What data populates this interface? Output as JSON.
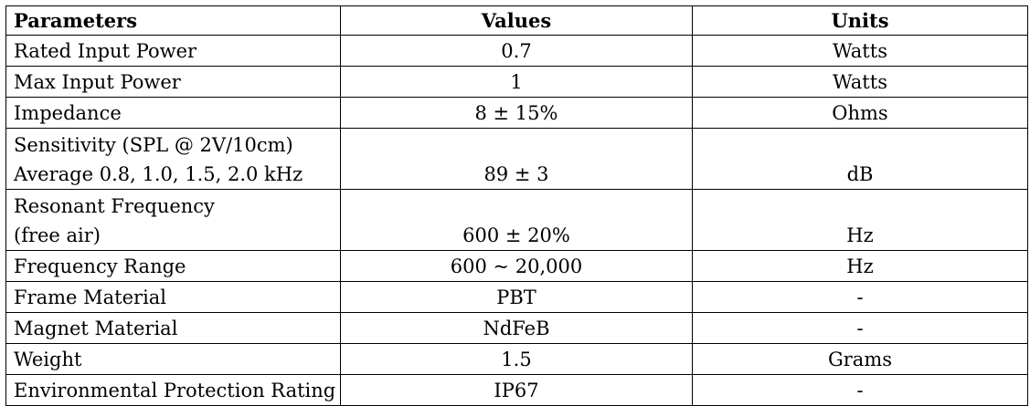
{
  "table": {
    "headers": [
      "Parameters",
      "Values",
      "Units"
    ],
    "rows": [
      {
        "parameter": [
          "Rated Input Power"
        ],
        "value": "0.7",
        "unit": "Watts"
      },
      {
        "parameter": [
          "Max Input Power"
        ],
        "value": "1",
        "unit": "Watts"
      },
      {
        "parameter": [
          "Impedance"
        ],
        "value": "8 ± 15%",
        "unit": "Ohms"
      },
      {
        "parameter": [
          "Sensitivity (SPL @ 2V/10cm)",
          "Average 0.8, 1.0, 1.5, 2.0 kHz"
        ],
        "value": "89 ± 3",
        "unit": "dB"
      },
      {
        "parameter": [
          "Resonant Frequency",
          "(free air)"
        ],
        "value": "600 ± 20%",
        "unit": "Hz"
      },
      {
        "parameter": [
          "Frequency Range"
        ],
        "value": "600 ~ 20,000",
        "unit": "Hz"
      },
      {
        "parameter": [
          "Frame Material"
        ],
        "value": "PBT",
        "unit": "-"
      },
      {
        "parameter": [
          "Magnet Material"
        ],
        "value": "NdFeB",
        "unit": "-"
      },
      {
        "parameter": [
          "Weight"
        ],
        "value": "1.5",
        "unit": "Grams"
      },
      {
        "parameter": [
          "Environmental Protection Rating"
        ],
        "value": "IP67",
        "unit": "-"
      }
    ]
  }
}
